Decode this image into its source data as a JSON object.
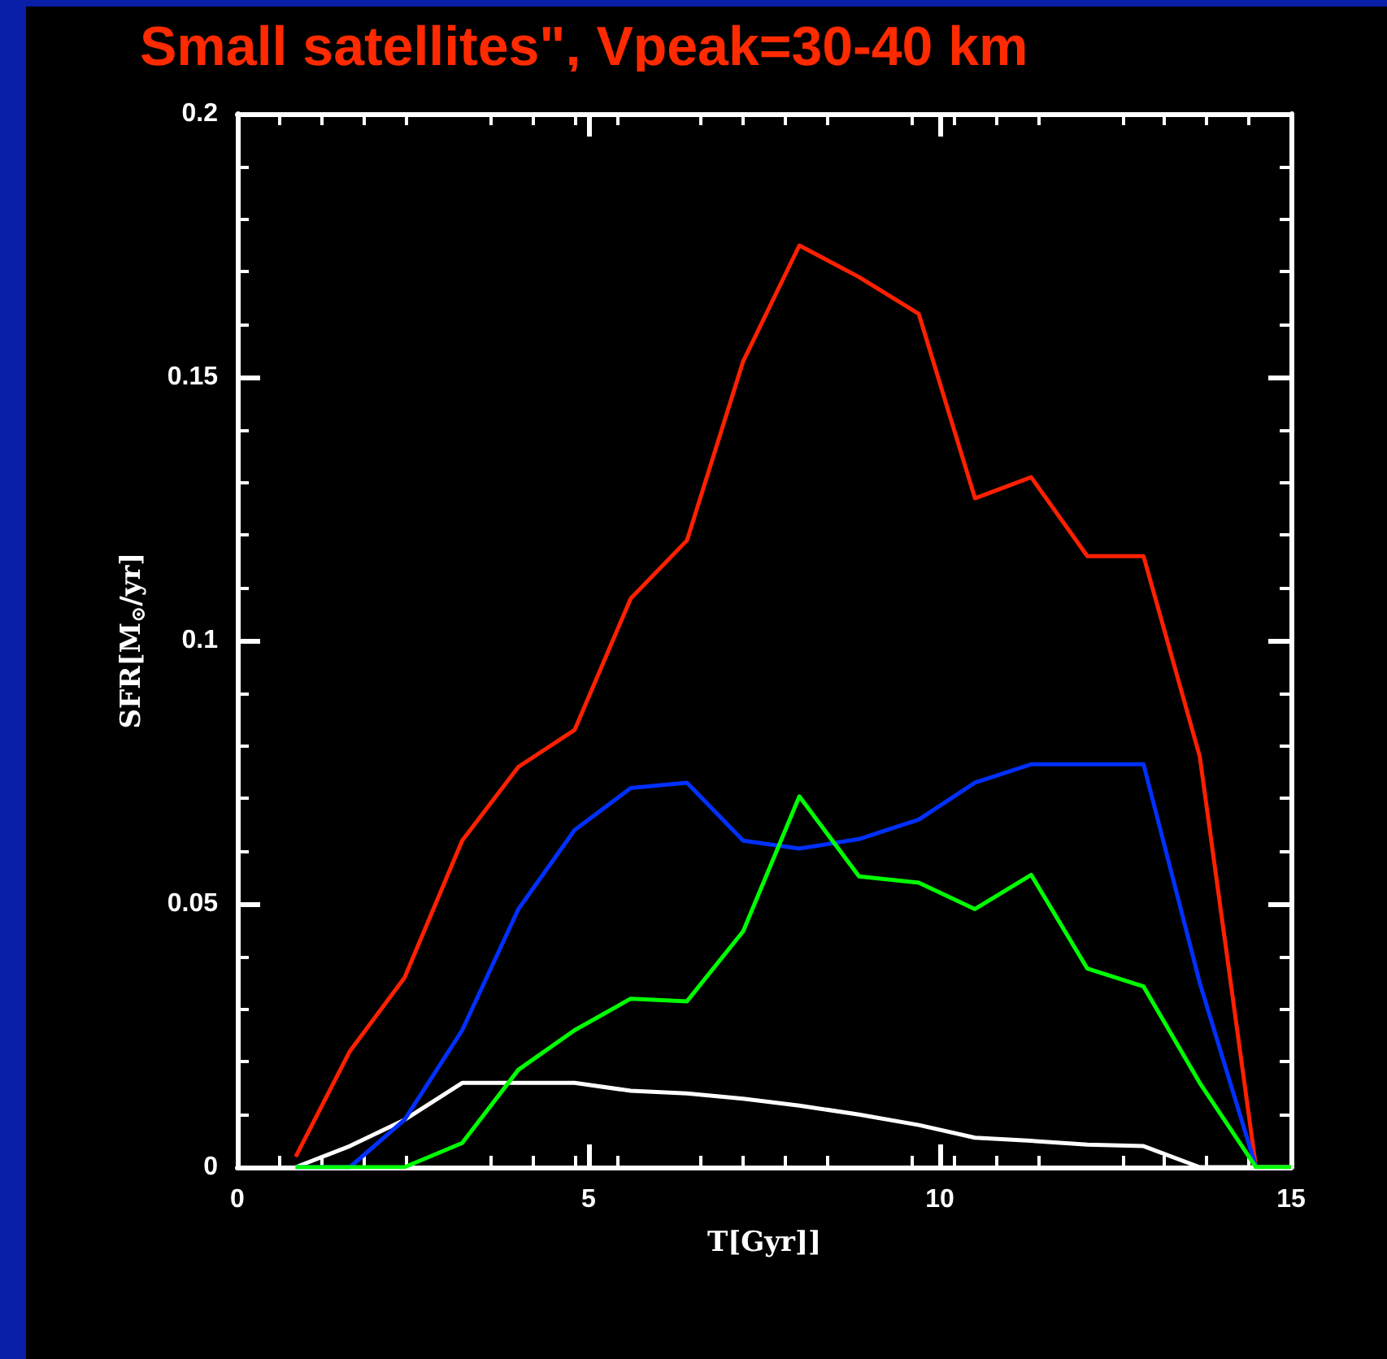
{
  "chart_data": {
    "type": "line",
    "title": "Small satellites\", Vpeak=30-40 km",
    "xlabel": "T[Gyr]]",
    "ylabel": "SFR[M$_{⊙}$/yr]",
    "x": [
      0.83,
      1.6,
      2.38,
      3.2,
      4.0,
      4.8,
      5.6,
      6.4,
      7.2,
      8.0,
      8.85,
      9.7,
      10.5,
      11.3,
      12.1,
      12.9,
      13.7,
      14.5,
      15
    ],
    "series": [
      {
        "color": "#ffffff",
        "values": [
          0,
          0.004,
          0.009,
          0.016,
          0.016,
          0.016,
          0.0145,
          0.014,
          0.013,
          0.0117,
          0.01,
          0.008,
          0.0056,
          0.005,
          0.0043,
          0.004,
          0,
          0,
          0
        ]
      },
      {
        "color": "#ff2000",
        "values": [
          0.002,
          0.022,
          0.036,
          0.062,
          0.076,
          0.083,
          0.108,
          0.119,
          0.153,
          0.175,
          0.169,
          0.162,
          0.127,
          0.131,
          0.116,
          0.116,
          0.078,
          0,
          null
        ]
      },
      {
        "color": "#0030ff",
        "values": [
          0,
          0,
          0.009,
          0.026,
          0.049,
          0.064,
          0.072,
          0.073,
          0.062,
          0.0605,
          0.0623,
          0.066,
          0.073,
          0.0765,
          0.0765,
          0.0765,
          0.035,
          0,
          null
        ]
      },
      {
        "color": "#00ff00",
        "values": [
          0,
          0,
          0,
          0.0046,
          0.0185,
          0.026,
          0.032,
          0.0315,
          0.0448,
          0.0704,
          0.0552,
          0.054,
          0.049,
          0.0555,
          0.0377,
          0.0343,
          0.016,
          0,
          0
        ]
      }
    ],
    "xlim": [
      0,
      15
    ],
    "xticks": [
      0,
      5,
      10,
      15
    ],
    "ylim": [
      0,
      0.2
    ],
    "yticks": [
      0,
      0.05,
      0.1,
      0.15,
      0.2
    ],
    "marker": "none",
    "line_style": "solid"
  }
}
